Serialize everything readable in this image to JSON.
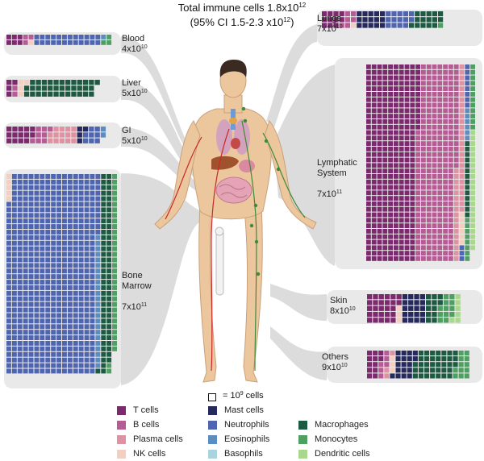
{
  "header": {
    "title_base": "Total immune cells 1.8x10",
    "title_exp": "12",
    "ci_base": "(95% CI 1.5-2.3 x10",
    "ci_exp": "12",
    "ci_tail": ")"
  },
  "organs": [
    {
      "key": "blood",
      "name": "Blood",
      "count_base": "4x10",
      "count_exp": "10"
    },
    {
      "key": "liver",
      "name": "Liver",
      "count_base": "5x10",
      "count_exp": "10"
    },
    {
      "key": "gi",
      "name": "GI",
      "count_base": "5x10",
      "count_exp": "10"
    },
    {
      "key": "bone",
      "name": "Bone\nMarrow",
      "count_base": "7x10",
      "count_exp": "11"
    },
    {
      "key": "lungs",
      "name": "Lungs",
      "count_base": "7x10",
      "count_exp": "10"
    },
    {
      "key": "lymph",
      "name": "Lymphatic\nSystem",
      "count_base": "7x10",
      "count_exp": "11"
    },
    {
      "key": "skin",
      "name": "Skin",
      "count_base": "8x10",
      "count_exp": "10"
    },
    {
      "key": "others",
      "name": "Others",
      "count_base": "9x10",
      "count_exp": "10"
    }
  ],
  "scale": {
    "prefix": "= 10",
    "exp": "9",
    "suffix": " cells"
  },
  "legend": [
    {
      "key": "t",
      "label": "T cells",
      "color": "#7b2a6e"
    },
    {
      "key": "b",
      "label": "B cells",
      "color": "#b65c94"
    },
    {
      "key": "plasma",
      "label": "Plasma cells",
      "color": "#de92a2"
    },
    {
      "key": "nk",
      "label": "NK cells",
      "color": "#f3cfc1"
    },
    {
      "key": "mast",
      "label": "Mast cells",
      "color": "#26295b"
    },
    {
      "key": "neut",
      "label": "Neutrophils",
      "color": "#4f65b0"
    },
    {
      "key": "eos",
      "label": "Eosinophils",
      "color": "#5b8dbf"
    },
    {
      "key": "baso",
      "label": "Basophils",
      "color": "#a8d3df"
    },
    {
      "key": "mac",
      "label": "Macrophages",
      "color": "#1e5a41"
    },
    {
      "key": "mono",
      "label": "Monocytes",
      "color": "#4f9f62"
    },
    {
      "key": "dc",
      "label": "Dendritic cells",
      "color": "#a9d78e"
    }
  ],
  "chart_data": {
    "type": "waffle",
    "unit": "1 square = 10^9 cells",
    "total_cells": 1800000000000.0,
    "total_ci": [
      1500000000000.0,
      2300000000000.0
    ],
    "organ_totals": {
      "blood": 40000000000.0,
      "liver": 50000000000.0,
      "gi": 50000000000.0,
      "bone_marrow": 700000000000.0,
      "lungs": 70000000000.0,
      "lymphatic_system": 700000000000.0,
      "skin": 80000000000.0,
      "others": 90000000000.0
    },
    "composition_squares": {
      "blood": {
        "t": 6,
        "b": 3,
        "plasma": 0,
        "nk": 1,
        "mast": 0,
        "neut": 24,
        "eos": 1,
        "baso": 0,
        "mac": 0,
        "mono": 3,
        "dc": 0
      },
      "liver": {
        "t": 4,
        "b": 2,
        "plasma": 0,
        "nk": 4,
        "mast": 0,
        "neut": 0,
        "eos": 0,
        "baso": 0,
        "mac": 36,
        "mono": 0,
        "dc": 0
      },
      "gi": {
        "t": 14,
        "b": 8,
        "plasma": 14,
        "nk": 0,
        "mast": 4,
        "neut": 8,
        "eos": 2,
        "baso": 0,
        "mac": 0,
        "mono": 0,
        "dc": 0
      },
      "bone": {
        "t": 0,
        "b": 0,
        "plasma": 0,
        "nk": 5,
        "mast": 0,
        "neut": 582,
        "eos": 24,
        "baso": 0,
        "mac": 71,
        "mono": 34,
        "dc": 0
      },
      "lungs": {
        "t": 11,
        "b": 6,
        "plasma": 0,
        "nk": 1,
        "mast": 15,
        "neut": 14,
        "eos": 0,
        "baso": 0,
        "mac": 15,
        "mono": 11,
        "dc": 0
      },
      "lymph": {
        "t": 336,
        "b": 259,
        "plasma": 44,
        "nk": 6,
        "mast": 0,
        "neut": 11,
        "eos": 6,
        "baso": 0,
        "mac": 14,
        "mono": 20,
        "dc": 22
      },
      "skin": {
        "t": 27,
        "b": 0,
        "plasma": 0,
        "nk": 3,
        "mast": 20,
        "neut": 0,
        "eos": 0,
        "baso": 0,
        "mac": 12,
        "mono": 12,
        "dc": 6
      },
      "others": {
        "t": 12,
        "b": 6,
        "plasma": 3,
        "nk": 3,
        "mast": 18,
        "neut": 0,
        "eos": 0,
        "baso": 0,
        "mac": 36,
        "mono": 12,
        "dc": 0
      }
    }
  }
}
